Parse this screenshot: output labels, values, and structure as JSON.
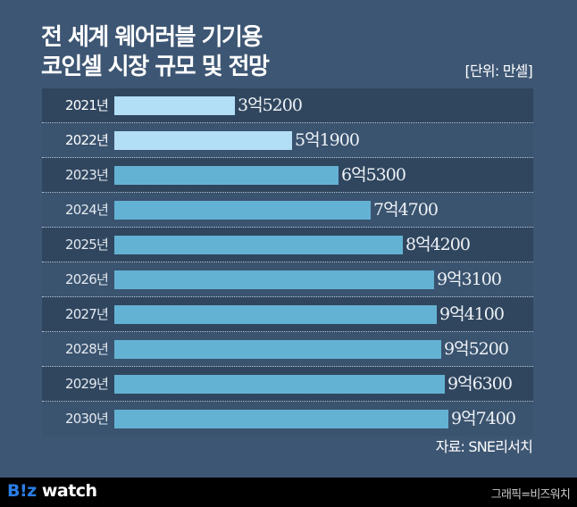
{
  "title": {
    "line1": "전 세계 웨어러블 기기용",
    "line2": "코인셀 시장 규모 및 전망"
  },
  "unit_label": "[단위: 만셀]",
  "source": "자료: SNE리서치",
  "footer": {
    "logo_part1": "B!z",
    "logo_part2": " watch",
    "credit": "그래픽=비즈워치"
  },
  "colors": {
    "background": "#3d5673",
    "row_dark": "#30465f",
    "row_light": "#3a536f",
    "bar_actual": "#b2def6",
    "bar_forecast": "#64b2d3",
    "footer_bg": "#000000",
    "logo_blue": "#2b7ee6"
  },
  "rows": [
    {
      "year": "2021년",
      "label": "3억5200"
    },
    {
      "year": "2022년",
      "label": "5억1900"
    },
    {
      "year": "2023년",
      "label": "6억5300"
    },
    {
      "year": "2024년",
      "label": "7억4700"
    },
    {
      "year": "2025년",
      "label": "8억4200"
    },
    {
      "year": "2026년",
      "label": "9억3100"
    },
    {
      "year": "2027년",
      "label": "9억4100"
    },
    {
      "year": "2028년",
      "label": "9억5200"
    },
    {
      "year": "2029년",
      "label": "9억6300"
    },
    {
      "year": "2030년",
      "label": "9억7400"
    }
  ],
  "chart_data": {
    "type": "bar",
    "orientation": "horizontal",
    "title": "전 세계 웨어러블 기기용 코인셀 시장 규모 및 전망",
    "unit": "만셀",
    "categories": [
      "2021년",
      "2022년",
      "2023년",
      "2024년",
      "2025년",
      "2026년",
      "2027년",
      "2028년",
      "2029년",
      "2030년"
    ],
    "values": [
      35200,
      51900,
      65300,
      74700,
      84200,
      93100,
      94100,
      95200,
      96300,
      97400
    ],
    "value_labels": [
      "3억5200",
      "5억1900",
      "6억5300",
      "7억4700",
      "8억4200",
      "9억3100",
      "9억4100",
      "9억5200",
      "9억6300",
      "9억7400"
    ],
    "highlighted": [
      true,
      true,
      false,
      false,
      false,
      false,
      false,
      false,
      false,
      false
    ],
    "xlabel": "",
    "ylabel": "",
    "grid": false,
    "legend": null,
    "source": "자료: SNE리서치"
  }
}
